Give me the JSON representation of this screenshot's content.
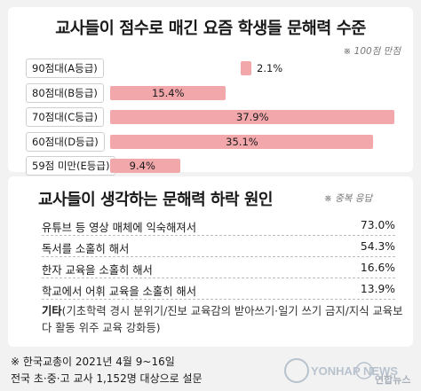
{
  "chart_data": [
    {
      "type": "bar",
      "title": "교사들이 점수로 매긴 요즘 학생들 문해력 수준",
      "note": "※ 100점 만점",
      "categories": [
        "90점대(A등급)",
        "80점대(B등급)",
        "70점대(C등급)",
        "60점대(D등급)",
        "59점 미만(E등급)"
      ],
      "values": [
        2.1,
        15.4,
        37.9,
        35.1,
        9.4
      ],
      "value_labels": [
        "2.1%",
        "15.4%",
        "37.9%",
        "35.1%",
        "9.4%"
      ],
      "xlim": [
        0,
        37.9
      ],
      "orientation": "horizontal",
      "color": "#f2a7ab"
    },
    {
      "type": "table",
      "title": "교사들이 생각하는 문해력 하락 원인",
      "note": "※ 중복 응답",
      "rows": [
        {
          "label": "유튜브 등 영상 매체에 익숙해져서",
          "value": "73.0%"
        },
        {
          "label": "독서를 소홀히 해서",
          "value": "54.3%"
        },
        {
          "label": "한자 교육을 소홀히 해서",
          "value": "16.6%"
        },
        {
          "label": "학교에서 어휘 교육을 소홀히 해서",
          "value": "13.9%"
        }
      ],
      "other_label": "기타",
      "other_text": "(기초학력 경시 분위기/진보 교육감의 받아쓰기·일기 쓰기 금지/지식 교육보다 활동 위주 교육 강화등)"
    }
  ],
  "footnote": {
    "line1": "※ 한국교총이 2021년 4월 9~16일",
    "line2": "전국 초·중·고 교사 1,152명 대상으로 설문"
  },
  "logo": {
    "text": "YONHAP NEWS",
    "korean": "연합뉴스"
  }
}
